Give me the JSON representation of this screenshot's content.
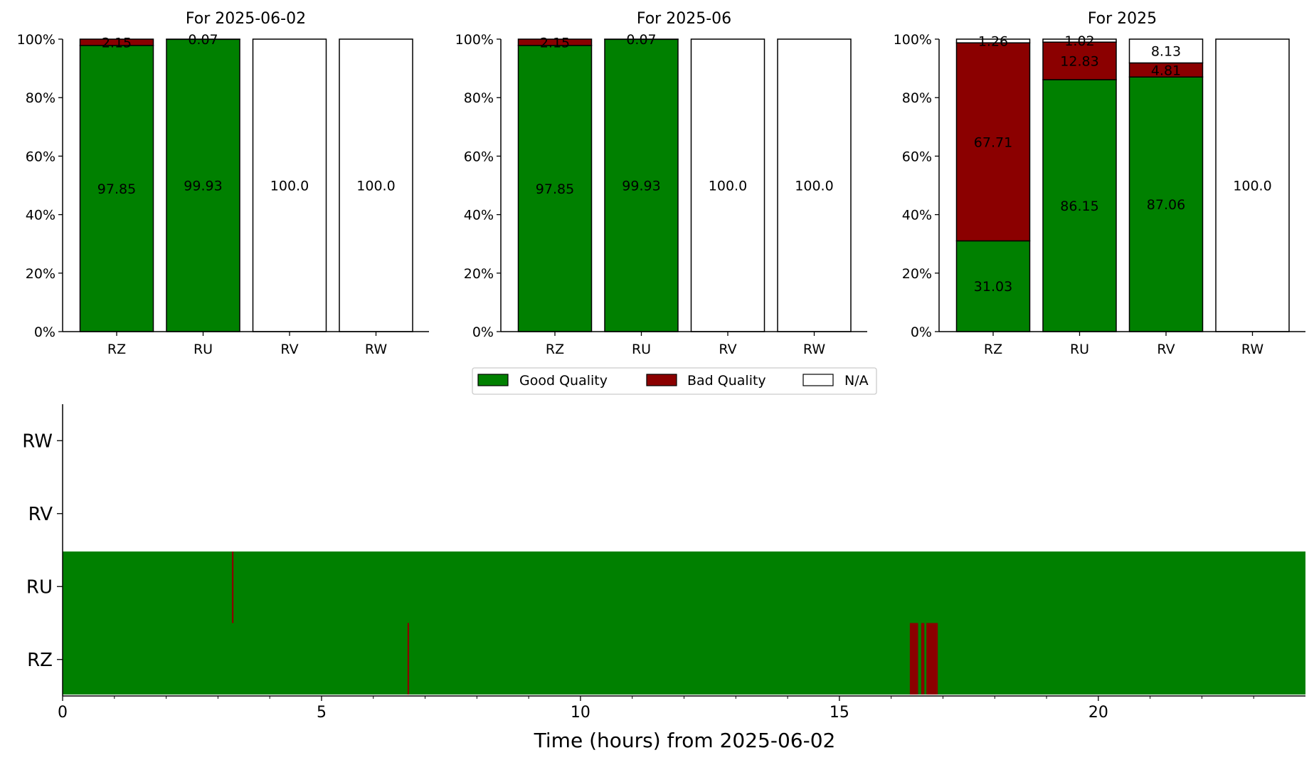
{
  "legend": [
    {
      "label": "Good Quality",
      "color": "#008000"
    },
    {
      "label": "Bad Quality",
      "color": "#8b0000"
    },
    {
      "label": "N/A",
      "color": "#ffffff"
    }
  ],
  "colors": {
    "good": "#008000",
    "bad": "#8b0000",
    "na": "#ffffff"
  },
  "chart_data": [
    {
      "type": "bar",
      "stacked": true,
      "title": "For 2025-06-02",
      "categories": [
        "RZ",
        "RU",
        "RV",
        "RW"
      ],
      "ylim": [
        0,
        100
      ],
      "y_ticks": [
        "0%",
        "20%",
        "40%",
        "60%",
        "80%",
        "100%"
      ],
      "series": [
        {
          "name": "Good Quality",
          "values": [
            97.85,
            99.93,
            0,
            0
          ]
        },
        {
          "name": "Bad Quality",
          "values": [
            2.15,
            0.07,
            0,
            0
          ]
        },
        {
          "name": "N/A",
          "values": [
            0,
            0,
            100.0,
            100.0
          ]
        }
      ],
      "labels": [
        [
          "97.85",
          "2.15",
          null
        ],
        [
          "99.93",
          "0.07",
          null
        ],
        [
          null,
          null,
          "100.0"
        ],
        [
          null,
          null,
          "100.0"
        ]
      ]
    },
    {
      "type": "bar",
      "stacked": true,
      "title": "For 2025-06",
      "categories": [
        "RZ",
        "RU",
        "RV",
        "RW"
      ],
      "ylim": [
        0,
        100
      ],
      "y_ticks": [
        "0%",
        "20%",
        "40%",
        "60%",
        "80%",
        "100%"
      ],
      "series": [
        {
          "name": "Good Quality",
          "values": [
            97.85,
            99.93,
            0,
            0
          ]
        },
        {
          "name": "Bad Quality",
          "values": [
            2.15,
            0.07,
            0,
            0
          ]
        },
        {
          "name": "N/A",
          "values": [
            0,
            0,
            100.0,
            100.0
          ]
        }
      ],
      "labels": [
        [
          "97.85",
          "2.15",
          null
        ],
        [
          "99.93",
          "0.07",
          null
        ],
        [
          null,
          null,
          "100.0"
        ],
        [
          null,
          null,
          "100.0"
        ]
      ]
    },
    {
      "type": "bar",
      "stacked": true,
      "title": "For 2025",
      "categories": [
        "RZ",
        "RU",
        "RV",
        "RW"
      ],
      "ylim": [
        0,
        100
      ],
      "y_ticks": [
        "0%",
        "20%",
        "40%",
        "60%",
        "80%",
        "100%"
      ],
      "series": [
        {
          "name": "Good Quality",
          "values": [
            31.03,
            86.15,
            87.06,
            0
          ]
        },
        {
          "name": "Bad Quality",
          "values": [
            67.71,
            12.83,
            4.81,
            0
          ]
        },
        {
          "name": "N/A",
          "values": [
            1.26,
            1.02,
            8.13,
            100.0
          ]
        }
      ],
      "labels": [
        [
          "31.03",
          "67.71",
          "1.26"
        ],
        [
          "86.15",
          "12.83",
          "1.02"
        ],
        [
          "87.06",
          "4.81",
          "8.13"
        ],
        [
          null,
          null,
          "100.0"
        ]
      ]
    },
    {
      "type": "timeline",
      "xlabel": "Time (hours) from 2025-06-02",
      "xlim": [
        0,
        24
      ],
      "x_ticks": [
        0,
        5,
        10,
        15,
        20
      ],
      "categories": [
        "RZ",
        "RU",
        "RV",
        "RW"
      ],
      "default_state": "Good Quality",
      "rows": [
        {
          "name": "RZ",
          "has_data": true,
          "bad_intervals": [
            [
              6.66,
              6.69
            ],
            [
              16.36,
              16.52
            ],
            [
              16.58,
              16.64
            ],
            [
              16.68,
              16.9
            ]
          ]
        },
        {
          "name": "RU",
          "has_data": true,
          "bad_intervals": [
            [
              3.27,
              3.3
            ]
          ]
        },
        {
          "name": "RV",
          "has_data": false,
          "bad_intervals": []
        },
        {
          "name": "RW",
          "has_data": false,
          "bad_intervals": []
        }
      ]
    }
  ]
}
